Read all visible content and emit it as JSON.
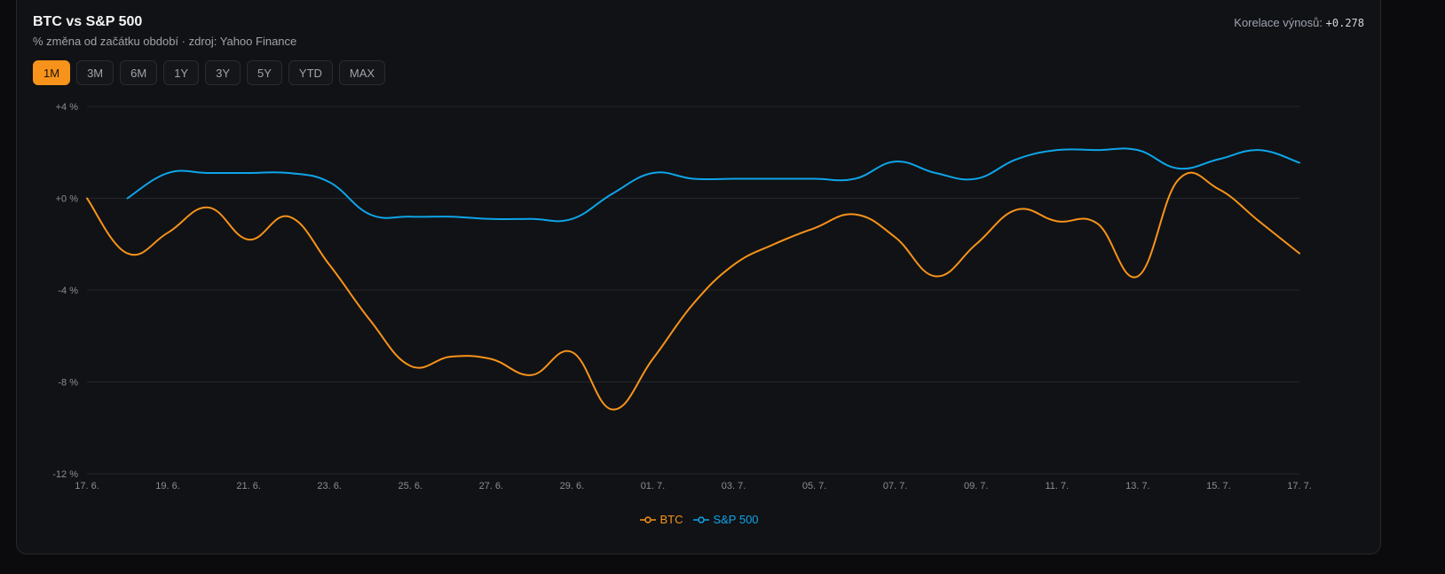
{
  "card": {
    "title": "BTC vs S&P 500",
    "subtitle": "% změna od začátku období · zdroj: Yahoo Finance",
    "correlation_label": "Korelace výnosů:",
    "correlation_value": "+0.278"
  },
  "ranges": [
    {
      "label": "1M",
      "active": true
    },
    {
      "label": "3M",
      "active": false
    },
    {
      "label": "6M",
      "active": false
    },
    {
      "label": "1Y",
      "active": false
    },
    {
      "label": "3Y",
      "active": false
    },
    {
      "label": "5Y",
      "active": false
    },
    {
      "label": "YTD",
      "active": false
    },
    {
      "label": "MAX",
      "active": false
    }
  ],
  "colors": {
    "btc": "#f7931a",
    "sp500": "#0ea5e9",
    "grid": "#26272c",
    "tick": "#8b8d94"
  },
  "chart_data": {
    "type": "line",
    "x": [
      "17. 6.",
      "18. 6.",
      "19. 6.",
      "20. 6.",
      "21. 6.",
      "22. 6.",
      "23. 6.",
      "24. 6.",
      "25. 6.",
      "26. 6.",
      "27. 6.",
      "28. 6.",
      "29. 6.",
      "30. 6.",
      "01. 7.",
      "02. 7.",
      "03. 7.",
      "04. 7.",
      "05. 7.",
      "06. 7.",
      "07. 7.",
      "08. 7.",
      "09. 7.",
      "10. 7.",
      "11. 7.",
      "12. 7.",
      "13. 7.",
      "14. 7.",
      "15. 7.",
      "16. 7.",
      "17. 7."
    ],
    "x_tick_labels": [
      "17. 6.",
      "19. 6.",
      "21. 6.",
      "23. 6.",
      "25. 6.",
      "27. 6.",
      "29. 6.",
      "01. 7.",
      "03. 7.",
      "05. 7.",
      "07. 7.",
      "09. 7.",
      "11. 7.",
      "13. 7.",
      "15. 7.",
      "17. 7."
    ],
    "y_tick_labels": [
      "+4 %",
      "+0 %",
      "-4 %",
      "-8 %",
      "-12 %"
    ],
    "y_ticks": [
      4,
      0,
      -4,
      -8,
      -12
    ],
    "ylim": [
      -12,
      4
    ],
    "series": [
      {
        "name": "BTC",
        "values": [
          0.0,
          -2.4,
          -1.5,
          -0.4,
          -1.8,
          -0.8,
          -2.9,
          -5.3,
          -7.3,
          -6.9,
          -7.0,
          -7.7,
          -6.7,
          -9.2,
          -7.0,
          -4.6,
          -2.9,
          -2.0,
          -1.3,
          -0.7,
          -1.7,
          -3.4,
          -2.0,
          -0.5,
          -1.0,
          -1.1,
          -3.4,
          0.8,
          0.4,
          -1.0,
          -2.4
        ]
      },
      {
        "name": "S&P 500",
        "values": [
          null,
          0.0,
          1.1,
          1.1,
          1.1,
          1.1,
          0.7,
          -0.7,
          -0.8,
          -0.8,
          -0.9,
          -0.9,
          -0.9,
          0.2,
          1.1,
          0.85,
          0.85,
          0.85,
          0.85,
          0.85,
          1.6,
          1.1,
          0.85,
          1.7,
          2.1,
          2.1,
          2.1,
          1.3,
          1.7,
          2.1,
          1.55
        ]
      }
    ],
    "legend_position": "bottom-center",
    "grid": true
  }
}
